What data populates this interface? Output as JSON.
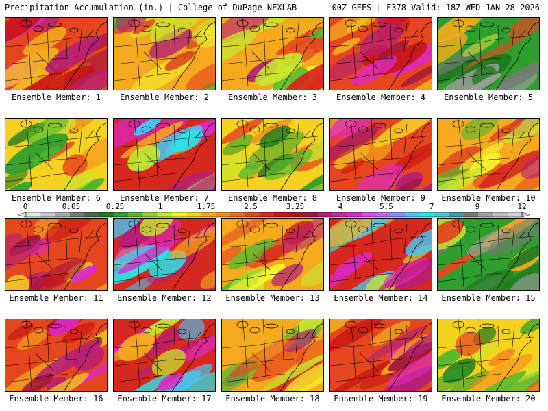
{
  "header": {
    "title": "Precipitation Accumulation (in.) | College of DuPage NEXLAB",
    "run_info": "00Z GEFS | F378 Valid: 18Z WED JAN 28 2026"
  },
  "colorbar": {
    "labels": [
      "0",
      "0.05",
      "0.25",
      "1",
      "1.75",
      "2.5",
      "3.25",
      "4",
      "5.5",
      "7",
      "9",
      "12"
    ],
    "colors": [
      "#e6e6e6",
      "#c8c8c8",
      "#a8a8a8",
      "#7a7a7a",
      "#4a6b4a",
      "#1e7a1e",
      "#2e9e2e",
      "#52b82e",
      "#8ed42e",
      "#c8e62e",
      "#f5f52e",
      "#f5d21e",
      "#f5aa1e",
      "#f58c1e",
      "#f06a1e",
      "#e6461e",
      "#d7281e",
      "#c81414",
      "#b4141e",
      "#a0143c",
      "#b41e78",
      "#c828a0",
      "#dc28c8",
      "#e646e6",
      "#b46ef0",
      "#8c8cf5",
      "#46c8f5",
      "#28e6e6",
      "#46c8c8",
      "#3ca0a0",
      "#787878",
      "#a0a0a0",
      "#bebebe",
      "#d2d2d2"
    ]
  },
  "members": [
    {
      "label": "Ensemble Member: 1",
      "tone": "wet"
    },
    {
      "label": "Ensemble Member: 2",
      "tone": "moderate"
    },
    {
      "label": "Ensemble Member: 3",
      "tone": "moderate"
    },
    {
      "label": "Ensemble Member: 4",
      "tone": "wet"
    },
    {
      "label": "Ensemble Member: 5",
      "tone": "extreme"
    },
    {
      "label": "Ensemble Member: 6",
      "tone": "dry"
    },
    {
      "label": "Ensemble Member: 7",
      "tone": "very-wet"
    },
    {
      "label": "Ensemble Member: 8",
      "tone": "dry"
    },
    {
      "label": "Ensemble Member: 9",
      "tone": "wet"
    },
    {
      "label": "Ensemble Member: 10",
      "tone": "moderate"
    },
    {
      "label": "Ensemble Member: 11",
      "tone": "wet"
    },
    {
      "label": "Ensemble Member: 12",
      "tone": "very-wet"
    },
    {
      "label": "Ensemble Member: 13",
      "tone": "moderate"
    },
    {
      "label": "Ensemble Member: 14",
      "tone": "very-wet"
    },
    {
      "label": "Ensemble Member: 15",
      "tone": "extreme"
    },
    {
      "label": "Ensemble Member: 16",
      "tone": "wet"
    },
    {
      "label": "Ensemble Member: 17",
      "tone": "very-wet"
    },
    {
      "label": "Ensemble Member: 18",
      "tone": "moderate"
    },
    {
      "label": "Ensemble Member: 19",
      "tone": "wet"
    },
    {
      "label": "Ensemble Member: 20",
      "tone": "dry"
    }
  ]
}
